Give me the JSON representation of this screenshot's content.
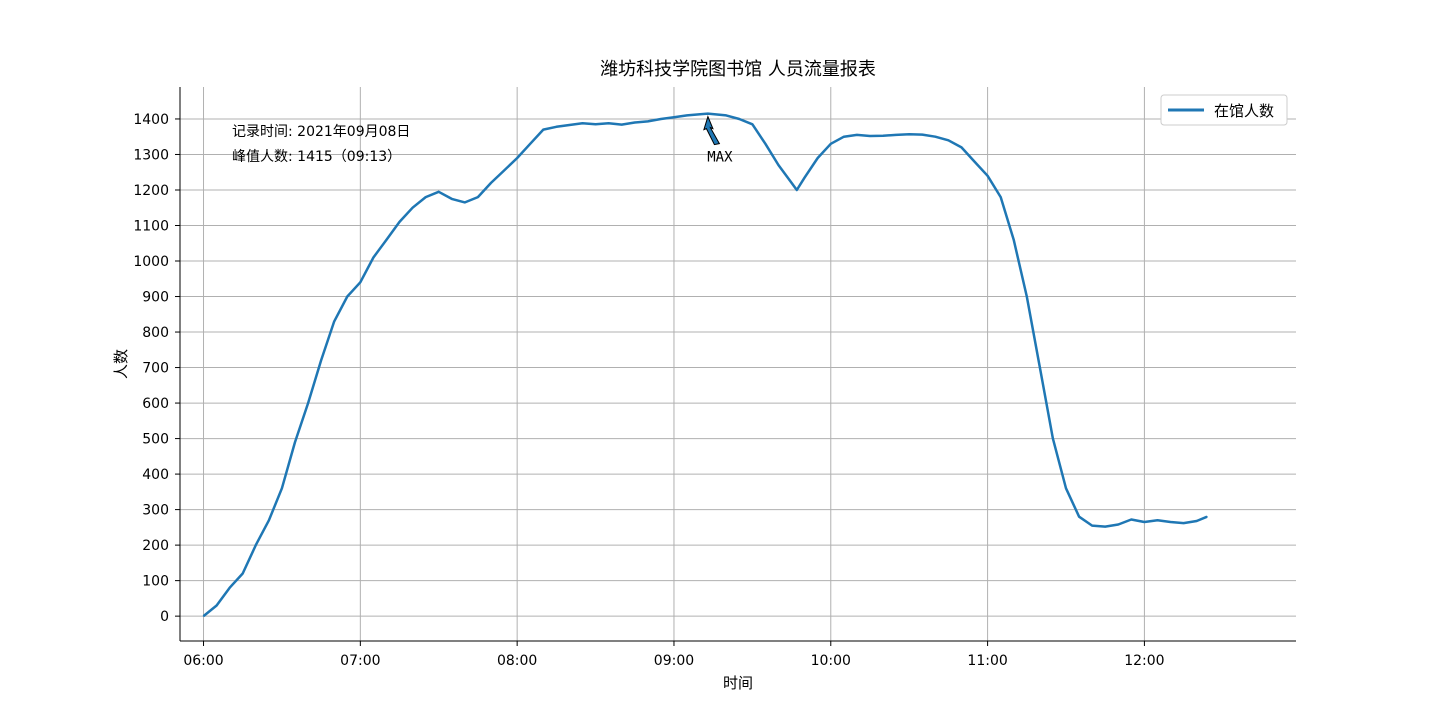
{
  "chart_data": {
    "type": "line",
    "title": "潍坊科技学院图书馆 人员流量报表",
    "xlabel": "时间",
    "ylabel": "人数",
    "x_unit": "time (HH:MM)",
    "xlim": [
      "05:51",
      "12:58"
    ],
    "ylim": [
      -70,
      1490
    ],
    "x_ticks": [
      "06:00",
      "07:00",
      "08:00",
      "09:00",
      "10:00",
      "11:00",
      "12:00"
    ],
    "y_ticks": [
      0,
      100,
      200,
      300,
      400,
      500,
      600,
      700,
      800,
      900,
      1000,
      1100,
      1200,
      1300,
      1400
    ],
    "grid": true,
    "legend_position": "top-right",
    "series": [
      {
        "name": "在馆人数",
        "color": "#1f77b4",
        "points": [
          [
            "06:00",
            0
          ],
          [
            "06:05",
            30
          ],
          [
            "06:10",
            80
          ],
          [
            "06:15",
            120
          ],
          [
            "06:20",
            200
          ],
          [
            "06:25",
            270
          ],
          [
            "06:30",
            360
          ],
          [
            "06:35",
            490
          ],
          [
            "06:40",
            600
          ],
          [
            "06:45",
            720
          ],
          [
            "06:50",
            830
          ],
          [
            "06:55",
            900
          ],
          [
            "07:00",
            940
          ],
          [
            "07:05",
            1010
          ],
          [
            "07:10",
            1060
          ],
          [
            "07:15",
            1110
          ],
          [
            "07:20",
            1150
          ],
          [
            "07:25",
            1180
          ],
          [
            "07:30",
            1195
          ],
          [
            "07:35",
            1175
          ],
          [
            "07:40",
            1165
          ],
          [
            "07:45",
            1180
          ],
          [
            "07:50",
            1220
          ],
          [
            "07:55",
            1255
          ],
          [
            "08:00",
            1290
          ],
          [
            "08:05",
            1330
          ],
          [
            "08:10",
            1370
          ],
          [
            "08:15",
            1378
          ],
          [
            "08:20",
            1383
          ],
          [
            "08:25",
            1388
          ],
          [
            "08:30",
            1385
          ],
          [
            "08:35",
            1388
          ],
          [
            "08:40",
            1384
          ],
          [
            "08:45",
            1390
          ],
          [
            "08:50",
            1393
          ],
          [
            "08:55",
            1400
          ],
          [
            "09:00",
            1405
          ],
          [
            "09:05",
            1410
          ],
          [
            "09:10",
            1413
          ],
          [
            "09:13",
            1415
          ],
          [
            "09:20",
            1410
          ],
          [
            "09:25",
            1400
          ],
          [
            "09:30",
            1385
          ],
          [
            "09:35",
            1330
          ],
          [
            "09:40",
            1270
          ],
          [
            "09:45",
            1220
          ],
          [
            "09:47",
            1200
          ],
          [
            "09:50",
            1235
          ],
          [
            "09:55",
            1290
          ],
          [
            "10:00",
            1330
          ],
          [
            "10:05",
            1350
          ],
          [
            "10:10",
            1355
          ],
          [
            "10:15",
            1352
          ],
          [
            "10:20",
            1353
          ],
          [
            "10:25",
            1355
          ],
          [
            "10:30",
            1357
          ],
          [
            "10:35",
            1356
          ],
          [
            "10:40",
            1350
          ],
          [
            "10:45",
            1340
          ],
          [
            "10:50",
            1320
          ],
          [
            "10:55",
            1280
          ],
          [
            "11:00",
            1240
          ],
          [
            "11:05",
            1180
          ],
          [
            "11:10",
            1060
          ],
          [
            "11:15",
            900
          ],
          [
            "11:20",
            700
          ],
          [
            "11:25",
            500
          ],
          [
            "11:30",
            360
          ],
          [
            "11:35",
            280
          ],
          [
            "11:40",
            255
          ],
          [
            "11:45",
            252
          ],
          [
            "11:50",
            258
          ],
          [
            "11:55",
            272
          ],
          [
            "12:00",
            265
          ],
          [
            "12:05",
            270
          ],
          [
            "12:10",
            265
          ],
          [
            "12:15",
            262
          ],
          [
            "12:20",
            268
          ],
          [
            "12:24",
            280
          ]
        ]
      }
    ],
    "annotations": [
      {
        "label": "MAX",
        "x": "09:13",
        "y": 1415
      }
    ],
    "info_lines": [
      "记录时间: 2021年09月08日",
      "峰值人数: 1415（09:13）"
    ]
  }
}
